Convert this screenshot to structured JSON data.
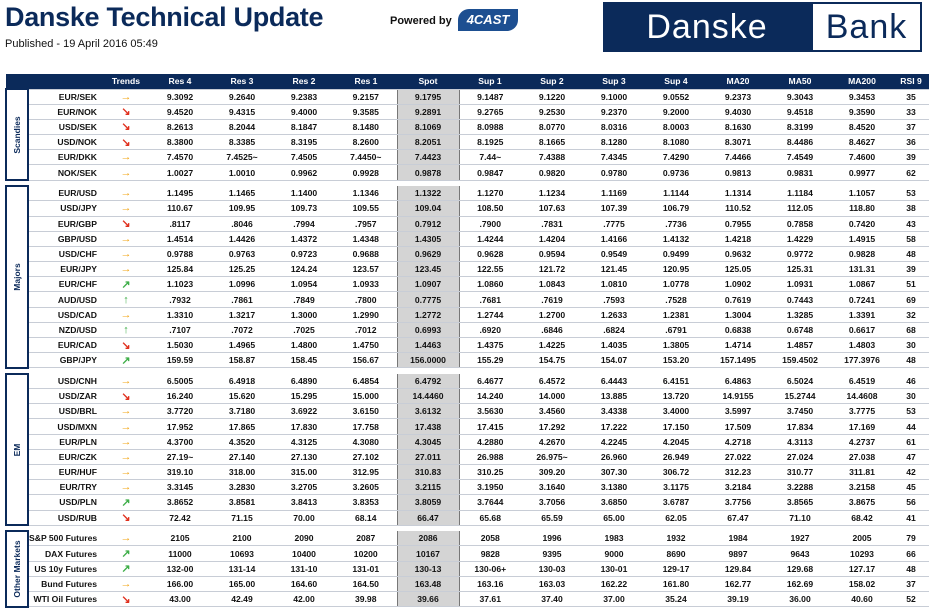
{
  "header": {
    "title": "Danske Technical Update",
    "published": "Published - 19 April 2016 05:49",
    "powered_by": "Powered by",
    "logo_4cast": "4CAST",
    "brand": [
      "Danske",
      "Bank"
    ]
  },
  "trend_colors": {
    "→": "#f2a516",
    "↘": "#e0301e",
    "↗": "#3fae49",
    "↑": "#3fae49"
  },
  "table": {
    "columns": [
      "Trends",
      "Res 4",
      "Res 3",
      "Res 2",
      "Res 1",
      "Spot",
      "Sup 1",
      "Sup 2",
      "Sup 3",
      "Sup 4",
      "MA20",
      "MA50",
      "MA200",
      "RSI 9"
    ],
    "groups": [
      {
        "name": "Scandies",
        "rows": [
          [
            "EUR/SEK",
            "→",
            "9.3092",
            "9.2640",
            "9.2383",
            "9.2157",
            "9.1795",
            "9.1487",
            "9.1220",
            "9.1000",
            "9.0552",
            "9.2373",
            "9.3043",
            "9.3453",
            "35"
          ],
          [
            "EUR/NOK",
            "↘",
            "9.4520",
            "9.4315",
            "9.4000",
            "9.3585",
            "9.2891",
            "9.2765",
            "9.2530",
            "9.2370",
            "9.2000",
            "9.4030",
            "9.4518",
            "9.3590",
            "33"
          ],
          [
            "USD/SEK",
            "↘",
            "8.2613",
            "8.2044",
            "8.1847",
            "8.1480",
            "8.1069",
            "8.0988",
            "8.0770",
            "8.0316",
            "8.0003",
            "8.1630",
            "8.3199",
            "8.4520",
            "37"
          ],
          [
            "USD/NOK",
            "↘",
            "8.3800",
            "8.3385",
            "8.3195",
            "8.2600",
            "8.2051",
            "8.1925",
            "8.1665",
            "8.1280",
            "8.1080",
            "8.3071",
            "8.4486",
            "8.4627",
            "36"
          ],
          [
            "EUR/DKK",
            "→",
            "7.4570",
            "7.4525~",
            "7.4505",
            "7.4450~",
            "7.4423",
            "7.44~",
            "7.4388",
            "7.4345",
            "7.4290",
            "7.4466",
            "7.4549",
            "7.4600",
            "39"
          ],
          [
            "NOK/SEK",
            "→",
            "1.0027",
            "1.0010",
            "0.9962",
            "0.9928",
            "0.9878",
            "0.9847",
            "0.9820",
            "0.9780",
            "0.9736",
            "0.9813",
            "0.9831",
            "0.9977",
            "62"
          ]
        ]
      },
      {
        "name": "Majors",
        "rows": [
          [
            "EUR/USD",
            "→",
            "1.1495",
            "1.1465",
            "1.1400",
            "1.1346",
            "1.1322",
            "1.1270",
            "1.1234",
            "1.1169",
            "1.1144",
            "1.1314",
            "1.1184",
            "1.1057",
            "53"
          ],
          [
            "USD/JPY",
            "→",
            "110.67",
            "109.95",
            "109.73",
            "109.55",
            "109.04",
            "108.50",
            "107.63",
            "107.39",
            "106.79",
            "110.52",
            "112.05",
            "118.80",
            "38"
          ],
          [
            "EUR/GBP",
            "↘",
            ".8117",
            ".8046",
            ".7994",
            ".7957",
            "0.7912",
            ".7900",
            ".7831",
            ".7775",
            ".7736",
            "0.7955",
            "0.7858",
            "0.7420",
            "43"
          ],
          [
            "GBP/USD",
            "→",
            "1.4514",
            "1.4426",
            "1.4372",
            "1.4348",
            "1.4305",
            "1.4244",
            "1.4204",
            "1.4166",
            "1.4132",
            "1.4218",
            "1.4229",
            "1.4915",
            "58"
          ],
          [
            "USD/CHF",
            "→",
            "0.9788",
            "0.9763",
            "0.9723",
            "0.9688",
            "0.9629",
            "0.9628",
            "0.9594",
            "0.9549",
            "0.9499",
            "0.9632",
            "0.9772",
            "0.9828",
            "48"
          ],
          [
            "EUR/JPY",
            "→",
            "125.84",
            "125.25",
            "124.24",
            "123.57",
            "123.45",
            "122.55",
            "121.72",
            "121.45",
            "120.95",
            "125.05",
            "125.31",
            "131.31",
            "39"
          ],
          [
            "EUR/CHF",
            "↗",
            "1.1023",
            "1.0996",
            "1.0954",
            "1.0933",
            "1.0907",
            "1.0860",
            "1.0843",
            "1.0810",
            "1.0778",
            "1.0902",
            "1.0931",
            "1.0867",
            "51"
          ],
          [
            "AUD/USD",
            "↑",
            ".7932",
            ".7861",
            ".7849",
            ".7800",
            "0.7775",
            ".7681",
            ".7619",
            ".7593",
            ".7528",
            "0.7619",
            "0.7443",
            "0.7241",
            "69"
          ],
          [
            "USD/CAD",
            "→",
            "1.3310",
            "1.3217",
            "1.3000",
            "1.2990",
            "1.2772",
            "1.2744",
            "1.2700",
            "1.2633",
            "1.2381",
            "1.3004",
            "1.3285",
            "1.3391",
            "32"
          ],
          [
            "NZD/USD",
            "↑",
            ".7107",
            ".7072",
            ".7025",
            ".7012",
            "0.6993",
            ".6920",
            ".6846",
            ".6824",
            ".6791",
            "0.6838",
            "0.6748",
            "0.6617",
            "68"
          ],
          [
            "EUR/CAD",
            "↘",
            "1.5030",
            "1.4965",
            "1.4800",
            "1.4750",
            "1.4463",
            "1.4375",
            "1.4225",
            "1.4035",
            "1.3805",
            "1.4714",
            "1.4857",
            "1.4803",
            "30"
          ],
          [
            "GBP/JPY",
            "↗",
            "159.59",
            "158.87",
            "158.45",
            "156.67",
            "156.0000",
            "155.29",
            "154.75",
            "154.07",
            "153.20",
            "157.1495",
            "159.4502",
            "177.3976",
            "48"
          ]
        ]
      },
      {
        "name": "EM",
        "rows": [
          [
            "USD/CNH",
            "→",
            "6.5005",
            "6.4918",
            "6.4890",
            "6.4854",
            "6.4792",
            "6.4677",
            "6.4572",
            "6.4443",
            "6.4151",
            "6.4863",
            "6.5024",
            "6.4519",
            "46"
          ],
          [
            "USD/ZAR",
            "↘",
            "16.240",
            "15.620",
            "15.295",
            "15.000",
            "14.4460",
            "14.240",
            "14.000",
            "13.885",
            "13.720",
            "14.9155",
            "15.2744",
            "14.4608",
            "30"
          ],
          [
            "USD/BRL",
            "→",
            "3.7720",
            "3.7180",
            "3.6922",
            "3.6150",
            "3.6132",
            "3.5630",
            "3.4560",
            "3.4338",
            "3.4000",
            "3.5997",
            "3.7450",
            "3.7775",
            "53"
          ],
          [
            "USD/MXN",
            "→",
            "17.952",
            "17.865",
            "17.830",
            "17.758",
            "17.438",
            "17.415",
            "17.292",
            "17.222",
            "17.150",
            "17.509",
            "17.834",
            "17.169",
            "44"
          ],
          [
            "EUR/PLN",
            "→",
            "4.3700",
            "4.3520",
            "4.3125",
            "4.3080",
            "4.3045",
            "4.2880",
            "4.2670",
            "4.2245",
            "4.2045",
            "4.2718",
            "4.3113",
            "4.2737",
            "61"
          ],
          [
            "EUR/CZK",
            "→",
            "27.19~",
            "27.140",
            "27.130",
            "27.102",
            "27.011",
            "26.988",
            "26.975~",
            "26.960",
            "26.949",
            "27.022",
            "27.024",
            "27.038",
            "47"
          ],
          [
            "EUR/HUF",
            "→",
            "319.10",
            "318.00",
            "315.00",
            "312.95",
            "310.83",
            "310.25",
            "309.20",
            "307.30",
            "306.72",
            "312.23",
            "310.77",
            "311.81",
            "42"
          ],
          [
            "EUR/TRY",
            "→",
            "3.3145",
            "3.2830",
            "3.2705",
            "3.2605",
            "3.2115",
            "3.1950",
            "3.1640",
            "3.1380",
            "3.1175",
            "3.2184",
            "3.2288",
            "3.2158",
            "45"
          ],
          [
            "USD/PLN",
            "↗",
            "3.8652",
            "3.8581",
            "3.8413",
            "3.8353",
            "3.8059",
            "3.7644",
            "3.7056",
            "3.6850",
            "3.6787",
            "3.7756",
            "3.8565",
            "3.8675",
            "56"
          ],
          [
            "USD/RUB",
            "↘",
            "72.42",
            "71.15",
            "70.00",
            "68.14",
            "66.47",
            "65.68",
            "65.59",
            "65.00",
            "62.05",
            "67.47",
            "71.10",
            "68.42",
            "41"
          ]
        ]
      },
      {
        "name": "Other Markets",
        "rows": [
          [
            "S&P 500 Futures",
            "→",
            "2105",
            "2100",
            "2090",
            "2087",
            "2086",
            "2058",
            "1996",
            "1983",
            "1932",
            "1984",
            "1927",
            "2005",
            "79"
          ],
          [
            "DAX Futures",
            "↗",
            "11000",
            "10693",
            "10400",
            "10200",
            "10167",
            "9828",
            "9395",
            "9000",
            "8690",
            "9897",
            "9643",
            "10293",
            "66"
          ],
          [
            "US 10y Futures",
            "↗",
            "132-00",
            "131-14",
            "131-10",
            "131-01",
            "130-13",
            "130-06+",
            "130-03",
            "130-01",
            "129-17",
            "129.84",
            "129.68",
            "127.17",
            "48"
          ],
          [
            "Bund Futures",
            "→",
            "166.00",
            "165.00",
            "164.60",
            "164.50",
            "163.48",
            "163.16",
            "163.03",
            "162.22",
            "161.80",
            "162.77",
            "162.69",
            "158.02",
            "37"
          ],
          [
            "WTI Oil Futures",
            "↘",
            "43.00",
            "42.49",
            "42.00",
            "39.98",
            "39.66",
            "37.61",
            "37.40",
            "37.00",
            "35.24",
            "39.19",
            "36.00",
            "40.60",
            "52"
          ]
        ]
      }
    ]
  }
}
